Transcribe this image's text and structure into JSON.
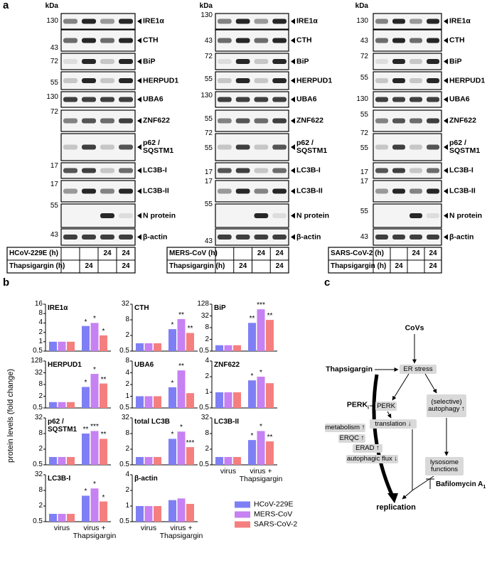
{
  "panel_labels": [
    "a",
    "b",
    "c"
  ],
  "blots": [
    {
      "kda_header": "kDa",
      "kda_markers": [
        130,
        43,
        72,
        55,
        130,
        72,
        17,
        17,
        55,
        43
      ],
      "proteins": [
        "IRE1α",
        "CTH",
        "BiP",
        "HERPUD1",
        "UBA6",
        "ZNF622",
        "p62 /\nSQSTM1",
        "LC3B-I",
        "LC3B-II",
        "N protein",
        "β-actin"
      ],
      "table": [
        {
          "label": "HCoV-229E (h)",
          "cells": [
            null,
            null,
            "24",
            "24"
          ]
        },
        {
          "label": "Thapsigargin (h)",
          "cells": [
            null,
            "24",
            null,
            "24"
          ]
        }
      ]
    },
    {
      "kda_header": "kDa",
      "kda_markers": [
        130,
        43,
        72,
        55,
        130,
        55,
        72,
        55,
        17,
        17,
        55,
        43
      ],
      "proteins": [
        "IRE1α",
        "CTH",
        "BiP",
        "HERPUD1",
        "UBA6",
        "ZNF622",
        "p62 /\nSQSTM1",
        "LC3B-I",
        "LC3B-II",
        "N protein",
        "β-actin"
      ],
      "table": [
        {
          "label": "MERS-CoV (h)",
          "cells": [
            null,
            null,
            "24",
            "24"
          ]
        },
        {
          "label": "Thapsigargin (h)",
          "cells": [
            null,
            "24",
            null,
            "24"
          ]
        }
      ]
    },
    {
      "kda_header": "kDa",
      "kda_markers": [
        130,
        43,
        72,
        55,
        130,
        55,
        72,
        55,
        17,
        17,
        55,
        43
      ],
      "proteins": [
        "IRE1α",
        "CTH",
        "BiP",
        "HERPUD1",
        "UBA6",
        "ZNF622",
        "p62 /\nSQSTM1",
        "LC3B-I",
        "LC3B-II",
        "N protein",
        "β-actin"
      ],
      "table": [
        {
          "label": "SARS-CoV-2 (h)",
          "cells": [
            null,
            null,
            "24",
            "24"
          ]
        },
        {
          "label": "Thapsigargin (h)",
          "cells": [
            null,
            "24",
            null,
            "24"
          ]
        }
      ]
    }
  ],
  "panel_b": {
    "y_label": "protein levels (fold change)",
    "legend": [
      {
        "name": "HCoV-229E",
        "color": "#7f7ff5"
      },
      {
        "name": "MERS-CoV",
        "color": "#c681f2"
      },
      {
        "name": "SARS-CoV-2",
        "color": "#f57f7f"
      }
    ]
  },
  "chart_data": [
    {
      "type": "bar",
      "title": "IRE1α",
      "log_scale": true,
      "ylim": [
        0.5,
        16
      ],
      "yticks": [
        0.5,
        1,
        2,
        4,
        8,
        16
      ],
      "series": [
        {
          "values": [
            1,
            3.2
          ],
          "stars": [
            null,
            "*"
          ]
        },
        {
          "values": [
            1,
            4
          ],
          "stars": [
            null,
            "*"
          ]
        },
        {
          "values": [
            1,
            1.6
          ],
          "stars": [
            null,
            "*"
          ]
        }
      ]
    },
    {
      "type": "bar",
      "title": "CTH",
      "log_scale": true,
      "ylim": [
        0.5,
        32
      ],
      "yticks": [
        0.5,
        2,
        8,
        32
      ],
      "series": [
        {
          "values": [
            1,
            3.5
          ],
          "stars": [
            null,
            "*"
          ]
        },
        {
          "values": [
            1,
            8.5
          ],
          "stars": [
            null,
            "**"
          ]
        },
        {
          "values": [
            1,
            2.5
          ],
          "stars": [
            null,
            "**"
          ]
        }
      ]
    },
    {
      "type": "bar",
      "title": "BiP",
      "log_scale": true,
      "ylim": [
        0.5,
        128
      ],
      "yticks": [
        0.5,
        2,
        8,
        32,
        128
      ],
      "series": [
        {
          "values": [
            1,
            14
          ],
          "stars": [
            null,
            "**"
          ]
        },
        {
          "values": [
            1,
            70
          ],
          "stars": [
            null,
            "***"
          ]
        },
        {
          "values": [
            1,
            20
          ],
          "stars": [
            null,
            "**"
          ]
        }
      ]
    },
    {
      "type": "bar",
      "title": "HERPUD1",
      "log_scale": true,
      "ylim": [
        0.5,
        128
      ],
      "yticks": [
        0.5,
        2,
        8,
        32,
        128
      ],
      "series": [
        {
          "values": [
            1,
            6
          ],
          "stars": [
            null,
            "*"
          ]
        },
        {
          "values": [
            1,
            28
          ],
          "stars": [
            null,
            "*"
          ]
        },
        {
          "values": [
            1,
            9
          ],
          "stars": [
            null,
            "**"
          ]
        }
      ]
    },
    {
      "type": "bar",
      "title": "UBA6",
      "log_scale": true,
      "ylim": [
        0.5,
        8
      ],
      "yticks": [
        0.5,
        1,
        2,
        4,
        8
      ],
      "series": [
        {
          "values": [
            1,
            1.7
          ],
          "stars": [
            null,
            "*"
          ]
        },
        {
          "values": [
            1,
            4.6
          ],
          "stars": [
            null,
            "**"
          ]
        },
        {
          "values": [
            1,
            1.2
          ],
          "stars": [
            null,
            null
          ]
        }
      ]
    },
    {
      "type": "bar",
      "title": "ZNF622",
      "log_scale": true,
      "ylim": [
        0.5,
        4
      ],
      "yticks": [
        0.5,
        1,
        2,
        4
      ],
      "series": [
        {
          "values": [
            1,
            1.7
          ],
          "stars": [
            null,
            "*"
          ]
        },
        {
          "values": [
            1,
            2
          ],
          "stars": [
            null,
            "*"
          ]
        },
        {
          "values": [
            1,
            1.5
          ],
          "stars": [
            null,
            null
          ]
        }
      ]
    },
    {
      "type": "bar",
      "title": "p62 /\nSQSTM1",
      "log_scale": true,
      "ylim": [
        0.5,
        32
      ],
      "yticks": [
        0.5,
        2,
        8,
        32
      ],
      "series": [
        {
          "values": [
            1,
            8
          ],
          "stars": [
            null,
            "**"
          ]
        },
        {
          "values": [
            1,
            10
          ],
          "stars": [
            null,
            "***"
          ]
        },
        {
          "values": [
            1,
            5
          ],
          "stars": [
            null,
            "**"
          ]
        }
      ]
    },
    {
      "type": "bar",
      "title": "total LC3B",
      "log_scale": true,
      "ylim": [
        0.5,
        32
      ],
      "yticks": [
        0.5,
        2,
        8,
        32
      ],
      "series": [
        {
          "values": [
            1,
            5
          ],
          "stars": [
            null,
            "*"
          ]
        },
        {
          "values": [
            1,
            9.5
          ],
          "stars": [
            null,
            "*"
          ]
        },
        {
          "values": [
            1,
            2.4
          ],
          "stars": [
            null,
            "***"
          ]
        }
      ]
    },
    {
      "type": "bar",
      "title": "LC3B-II",
      "log_scale": true,
      "ylim": [
        0.5,
        32
      ],
      "yticks": [
        0.5,
        2,
        8,
        32
      ],
      "categories": [
        "virus",
        "virus +\nThapsigargin"
      ],
      "series": [
        {
          "values": [
            1,
            4.5
          ],
          "stars": [
            null,
            "*"
          ]
        },
        {
          "values": [
            1,
            10
          ],
          "stars": [
            null,
            "*"
          ]
        },
        {
          "values": [
            1,
            4
          ],
          "stars": [
            null,
            "**"
          ]
        }
      ]
    },
    {
      "type": "bar",
      "title": "LC3B-I",
      "log_scale": true,
      "ylim": [
        0.5,
        32
      ],
      "yticks": [
        0.5,
        2,
        8,
        32
      ],
      "categories": [
        "virus",
        "virus +\nThapsigargin"
      ],
      "series": [
        {
          "values": [
            1,
            5
          ],
          "stars": [
            null,
            "*"
          ]
        },
        {
          "values": [
            1,
            9.5
          ],
          "stars": [
            null,
            "*"
          ]
        },
        {
          "values": [
            1,
            3
          ],
          "stars": [
            null,
            "*"
          ]
        }
      ]
    },
    {
      "type": "bar",
      "title": "β-actin",
      "log_scale": true,
      "ylim": [
        0.5,
        4
      ],
      "yticks": [
        0.5,
        1,
        2,
        4
      ],
      "categories": [
        "virus",
        "virus +\nThapsigargin"
      ],
      "series": [
        {
          "values": [
            1,
            1.3
          ],
          "stars": [
            null,
            null
          ]
        },
        {
          "values": [
            1,
            1.4
          ],
          "stars": [
            null,
            null
          ]
        },
        {
          "values": [
            1,
            1.1
          ],
          "stars": [
            null,
            null
          ]
        }
      ]
    }
  ],
  "diagram": {
    "covs": "CoVs",
    "thapsigargin": "Thapsigargin",
    "er_stress": "ER stress",
    "perk_inhibitor": "PERK",
    "perk_inhibitor_sub": "i",
    "perk": "PERK",
    "translation": "translation ↓",
    "autophagy": "(selective)\nautophagy ↑",
    "metabolism": "metabolism ↑",
    "erqc": "ERQC ↑",
    "erad": "ERAD ↑",
    "flux": "autophagic flux ↓",
    "lysosome": "lysosome\nfunctions",
    "bafilomycin": "Bafilomycin A",
    "bafilomycin_sub": "1",
    "replication": "replication"
  }
}
